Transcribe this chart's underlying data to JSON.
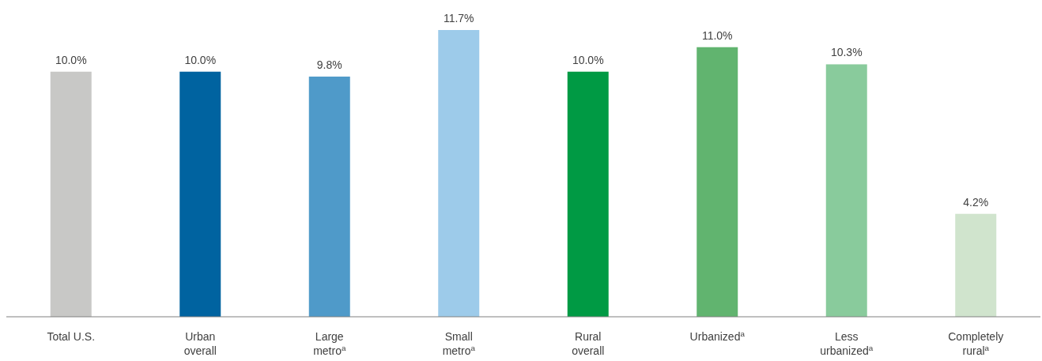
{
  "chart_data": {
    "type": "bar",
    "categories": [
      "Total U.S.",
      "Urban overall",
      "Large metro$^{a}$",
      "Small metro$^{a}$",
      "Rural overall",
      "Urbanized$^{a}$",
      "Less urbanized$^{a}$",
      "Completely rural$^{a}$"
    ],
    "values": [
      10.0,
      10.0,
      9.8,
      11.7,
      10.0,
      11.0,
      10.3,
      4.2
    ],
    "colors": [
      "#c8c8c6",
      "#0063a0",
      "#4f9ac9",
      "#9dcbea",
      "#009a44",
      "#61b46f",
      "#89cb9c",
      "#d0e4cd"
    ],
    "value_labels": [
      "10.0%",
      "10.0%",
      "9.8%",
      "11.7%",
      "10.0%",
      "11.0%",
      "10.3%",
      "4.2%"
    ]
  }
}
